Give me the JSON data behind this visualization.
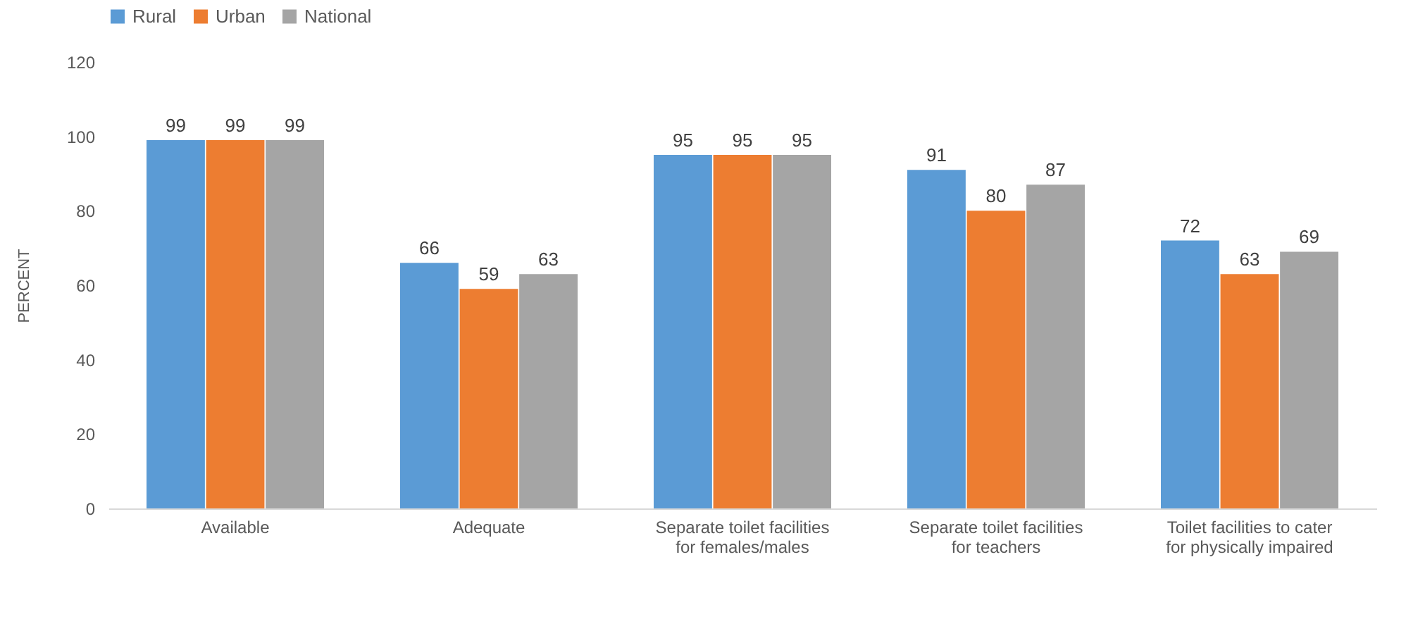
{
  "chart_data": {
    "type": "bar",
    "ylabel": "PERCENT",
    "categories": [
      "Available",
      "Adequate",
      "Separate toilet facilities for females/males",
      "Separate toilet facilities for teachers",
      "Toilet facilities to cater for physically impaired"
    ],
    "series": [
      {
        "name": "Rural",
        "color": "#5b9bd5",
        "values": [
          99,
          66,
          95,
          91,
          72
        ]
      },
      {
        "name": "Urban",
        "color": "#ed7d31",
        "values": [
          99,
          59,
          95,
          80,
          63
        ]
      },
      {
        "name": "National",
        "color": "#a5a5a5",
        "values": [
          99,
          63,
          95,
          87,
          69
        ]
      }
    ],
    "ylim": [
      0,
      120
    ],
    "yticks": [
      0,
      20,
      40,
      60,
      80,
      100,
      120
    ],
    "grid": false,
    "legend": "top",
    "data_labels": true
  }
}
